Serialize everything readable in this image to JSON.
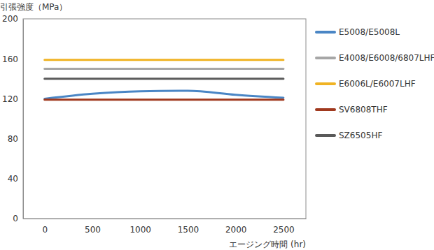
{
  "chart_data": {
    "type": "line",
    "y_label": "引張強度（MPa）",
    "x_label": "エージング時間 (hr)",
    "x": [
      0,
      500,
      1000,
      1500,
      2000,
      2500
    ],
    "series": [
      {
        "name": "E5008/E5008L",
        "color": "#4a86c5",
        "values": [
          120,
          125,
          127.5,
          128,
          124,
          121
        ]
      },
      {
        "name": "E4008/E6008/6807LHF",
        "color": "#a6a6a6",
        "values": [
          150,
          150,
          150,
          150,
          150,
          150
        ]
      },
      {
        "name": "E6006L/E6007LHF",
        "color": "#f0b323",
        "values": [
          159,
          159,
          159,
          159,
          159,
          159
        ]
      },
      {
        "name": "SV6808THF",
        "color": "#a0391e",
        "values": [
          119,
          119,
          119,
          119,
          119,
          119
        ]
      },
      {
        "name": "SZ6505HF",
        "color": "#595959",
        "values": [
          140,
          140,
          140,
          140,
          140,
          140
        ]
      }
    ],
    "xlim": [
      -225,
      2735
    ],
    "ylim": [
      0,
      200
    ],
    "xticks": [
      0,
      500,
      1000,
      1500,
      2000,
      2500
    ],
    "yticks": [
      0,
      40,
      80,
      120,
      160,
      200
    ],
    "grid": false,
    "legend": "right"
  }
}
